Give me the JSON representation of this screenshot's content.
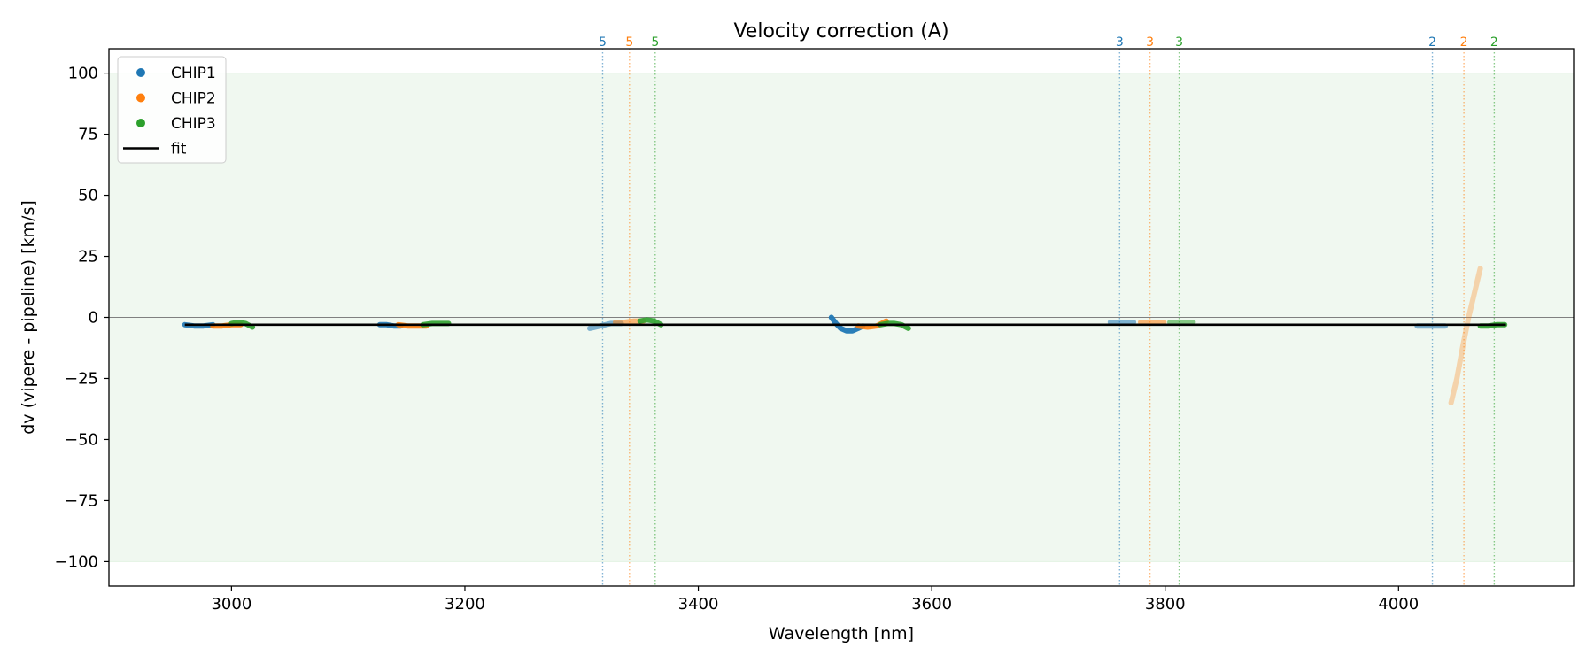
{
  "chart_data": {
    "type": "scatter",
    "title": "Velocity correction (A)",
    "xlabel": "Wavelength [nm]",
    "ylabel": "dv (vipere - pipeline) [km/s]",
    "xlim": [
      2895,
      4150
    ],
    "ylim": [
      -110,
      110
    ],
    "xticks": [
      3000,
      3200,
      3400,
      3600,
      3800,
      4000
    ],
    "yticks": [
      -100,
      -75,
      -50,
      -25,
      0,
      25,
      50,
      75,
      100
    ],
    "ytick_labels": [
      "−100",
      "−75",
      "−50",
      "−25",
      "0",
      "25",
      "50",
      "75",
      "100"
    ],
    "shaded_band": [
      -100,
      100
    ],
    "band_color": "#2ca02c",
    "zero_line": true,
    "grid": false,
    "legend_position": "top-left",
    "legend": [
      {
        "label": "CHIP1",
        "color": "#1f77b4",
        "kind": "marker"
      },
      {
        "label": "CHIP2",
        "color": "#ff7f0e",
        "kind": "marker"
      },
      {
        "label": "CHIP3",
        "color": "#2ca02c",
        "kind": "marker"
      },
      {
        "label": "fit",
        "color": "#000000",
        "kind": "line"
      }
    ],
    "order_markers": [
      {
        "x": 3318,
        "label": "5",
        "color": "#1f77b4"
      },
      {
        "x": 3341,
        "label": "5",
        "color": "#ff7f0e"
      },
      {
        "x": 3363,
        "label": "5",
        "color": "#2ca02c"
      },
      {
        "x": 3761,
        "label": "3",
        "color": "#1f77b4"
      },
      {
        "x": 3787,
        "label": "3",
        "color": "#ff7f0e"
      },
      {
        "x": 3812,
        "label": "3",
        "color": "#2ca02c"
      },
      {
        "x": 4029,
        "label": "2",
        "color": "#1f77b4"
      },
      {
        "x": 4056,
        "label": "2",
        "color": "#ff7f0e"
      },
      {
        "x": 4082,
        "label": "2",
        "color": "#2ca02c"
      }
    ],
    "series": [
      {
        "name": "CHIP1",
        "color": "#1f77b4",
        "opacity": 0.9,
        "x": [
          2960,
          2968,
          2976,
          2984
        ],
        "y": [
          -3,
          -3.5,
          -3.5,
          -3
        ]
      },
      {
        "name": "CHIP2",
        "color": "#ff7f0e",
        "opacity": 0.9,
        "x": [
          2984,
          2992,
          3000,
          3008
        ],
        "y": [
          -3.5,
          -3.5,
          -3,
          -3
        ]
      },
      {
        "name": "CHIP3",
        "color": "#2ca02c",
        "opacity": 0.9,
        "x": [
          3000,
          3006,
          3012,
          3018
        ],
        "y": [
          -2.5,
          -2,
          -2.5,
          -4
        ]
      },
      {
        "name": "CHIP1",
        "color": "#1f77b4",
        "opacity": 0.9,
        "x": [
          3127,
          3133,
          3139,
          3145
        ],
        "y": [
          -3,
          -3,
          -3.5,
          -3.5
        ]
      },
      {
        "name": "CHIP2",
        "color": "#ff7f0e",
        "opacity": 0.9,
        "x": [
          3143,
          3151,
          3159,
          3167
        ],
        "y": [
          -3,
          -3.5,
          -3.5,
          -3.5
        ]
      },
      {
        "name": "CHIP3",
        "color": "#2ca02c",
        "opacity": 0.9,
        "x": [
          3164,
          3172,
          3180,
          3186
        ],
        "y": [
          -3,
          -2.5,
          -2.5,
          -2.5
        ]
      },
      {
        "name": "CHIP1",
        "color": "#1f77b4",
        "opacity": 0.55,
        "x": [
          3307,
          3316,
          3325,
          3334
        ],
        "y": [
          -4.5,
          -3.5,
          -2.5,
          -2.5
        ]
      },
      {
        "name": "CHIP2",
        "color": "#ff7f0e",
        "opacity": 0.55,
        "x": [
          3329,
          3337,
          3345,
          3353
        ],
        "y": [
          -2,
          -2,
          -1.5,
          -1.5
        ]
      },
      {
        "name": "CHIP3",
        "color": "#2ca02c",
        "opacity": 0.9,
        "x": [
          3350,
          3356,
          3362,
          3368
        ],
        "y": [
          -1.5,
          -1,
          -1.5,
          -3
        ]
      },
      {
        "name": "CHIP1",
        "color": "#1f77b4",
        "opacity": 0.95,
        "x": [
          3514,
          3518,
          3522,
          3527,
          3532,
          3537,
          3541
        ],
        "y": [
          0,
          -2.5,
          -4.5,
          -5.5,
          -5.5,
          -4.5,
          -3.5
        ]
      },
      {
        "name": "CHIP2",
        "color": "#ff7f0e",
        "opacity": 0.9,
        "x": [
          3537,
          3545,
          3553,
          3561
        ],
        "y": [
          -3.5,
          -4,
          -3.5,
          -1.5
        ]
      },
      {
        "name": "CHIP3",
        "color": "#2ca02c",
        "opacity": 0.9,
        "x": [
          3556,
          3562,
          3568,
          3574,
          3580
        ],
        "y": [
          -3,
          -2.5,
          -2.5,
          -3,
          -4.5
        ]
      },
      {
        "name": "CHIP1",
        "color": "#1f77b4",
        "opacity": 0.55,
        "x": [
          3753,
          3760,
          3767,
          3773
        ],
        "y": [
          -2,
          -2,
          -2,
          -2
        ]
      },
      {
        "name": "CHIP2",
        "color": "#ff7f0e",
        "opacity": 0.55,
        "x": [
          3779,
          3786,
          3793,
          3799
        ],
        "y": [
          -2,
          -2,
          -2,
          -2
        ]
      },
      {
        "name": "CHIP3",
        "color": "#2ca02c",
        "opacity": 0.55,
        "x": [
          3804,
          3811,
          3818,
          3824
        ],
        "y": [
          -2,
          -2,
          -2,
          -2
        ]
      },
      {
        "name": "CHIP1",
        "color": "#1f77b4",
        "opacity": 0.55,
        "x": [
          4016,
          4024,
          4032,
          4040
        ],
        "y": [
          -3.5,
          -3.5,
          -3.5,
          -3.5
        ]
      },
      {
        "name": "CHIP2",
        "color": "#ff7f0e",
        "opacity": 0.3,
        "x": [
          4045,
          4050,
          4055,
          4060,
          4065,
          4070
        ],
        "y": [
          -35,
          -25,
          -12,
          0,
          10,
          20
        ]
      },
      {
        "name": "CHIP3",
        "color": "#2ca02c",
        "opacity": 0.9,
        "x": [
          4070,
          4077,
          4084,
          4091
        ],
        "y": [
          -3.5,
          -3.5,
          -3,
          -3
        ]
      }
    ],
    "fit": {
      "name": "fit",
      "color": "#000000",
      "x": [
        2960,
        4092
      ],
      "y": [
        -3,
        -3
      ]
    }
  }
}
